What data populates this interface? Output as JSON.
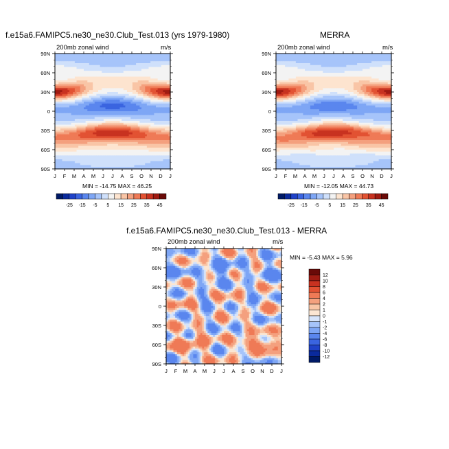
{
  "chart_data": [
    {
      "type": "heatmap",
      "title": "f.e15a6.FAMIPC5.ne30_ne30.Club_Test.013 (yrs 1979-1980)",
      "left_string": "200mb zonal wind",
      "right_string": "m/s",
      "x_ticks": [
        "J",
        "F",
        "M",
        "A",
        "M",
        "J",
        "J",
        "A",
        "S",
        "O",
        "N",
        "D",
        "J"
      ],
      "y_ticks": [
        "90N",
        "60N",
        "30N",
        "0",
        "30S",
        "60S",
        "90S"
      ],
      "ylim": [
        -90,
        90
      ],
      "stats": "MIN = -14.75 MAX =  46.25",
      "min": -14.75,
      "max": 46.25,
      "colorbar": {
        "orientation": "horizontal",
        "labels": [
          "-25",
          "-15",
          "-5",
          "5",
          "15",
          "25",
          "35",
          "45"
        ],
        "levels": [
          -30,
          -25,
          -20,
          -15,
          -10,
          -5,
          0,
          5,
          10,
          15,
          20,
          25,
          30,
          35,
          40,
          45
        ],
        "colors": [
          "#001a66",
          "#0a2a9c",
          "#1f42c8",
          "#3a64e0",
          "#5a86ee",
          "#7ea6f5",
          "#a6c4fa",
          "#cfe0fb",
          "#f3f3f3",
          "#fde4cf",
          "#f9c5a6",
          "#f4a07e",
          "#ef7a56",
          "#e25233",
          "#c83220",
          "#a01b12",
          "#6a0a08"
        ]
      },
      "description_fields": {
        "jet_north_lat": 30,
        "jet_north_peak_month": 1,
        "jet_north_peak": 46,
        "jet_south_lat": -32,
        "jet_south_peak_month": 7,
        "jet_south_peak": 42,
        "easterly_lat": 3,
        "easterly_peak_month": 7,
        "easterly_min": -14.75
      }
    },
    {
      "type": "heatmap",
      "title": "MERRA",
      "left_string": "200mb zonal wind",
      "right_string": "m/s",
      "x_ticks": [
        "J",
        "F",
        "M",
        "A",
        "M",
        "J",
        "J",
        "A",
        "S",
        "O",
        "N",
        "D",
        "J"
      ],
      "y_ticks": [
        "90N",
        "60N",
        "30N",
        "0",
        "30S",
        "60S",
        "90S"
      ],
      "ylim": [
        -90,
        90
      ],
      "stats": "MIN = -12.05 MAX =  44.73",
      "min": -12.05,
      "max": 44.73,
      "colorbar": {
        "orientation": "horizontal",
        "labels": [
          "-25",
          "-15",
          "-5",
          "5",
          "15",
          "25",
          "35",
          "45"
        ],
        "levels": [
          -30,
          -25,
          -20,
          -15,
          -10,
          -5,
          0,
          5,
          10,
          15,
          20,
          25,
          30,
          35,
          40,
          45
        ],
        "colors": [
          "#001a66",
          "#0a2a9c",
          "#1f42c8",
          "#3a64e0",
          "#5a86ee",
          "#7ea6f5",
          "#a6c4fa",
          "#cfe0fb",
          "#f3f3f3",
          "#fde4cf",
          "#f9c5a6",
          "#f4a07e",
          "#ef7a56",
          "#e25233",
          "#c83220",
          "#a01b12",
          "#6a0a08"
        ]
      }
    },
    {
      "type": "heatmap",
      "title": "f.e15a6.FAMIPC5.ne30_ne30.Club_Test.013 - MERRA",
      "left_string": "200mb zonal wind",
      "right_string": "m/s",
      "x_ticks": [
        "J",
        "F",
        "M",
        "A",
        "M",
        "J",
        "J",
        "A",
        "S",
        "O",
        "N",
        "D",
        "J"
      ],
      "y_ticks": [
        "90N",
        "60N",
        "30N",
        "0",
        "30S",
        "60S",
        "90S"
      ],
      "ylim": [
        -90,
        90
      ],
      "stats": "MIN =  -5.43 MAX =   5.96",
      "min": -5.43,
      "max": 5.96,
      "colorbar": {
        "orientation": "vertical",
        "labels": [
          "12",
          "10",
          "8",
          "6",
          "4",
          "2",
          "1",
          "0",
          "-1",
          "-2",
          "-4",
          "-6",
          "-8",
          "-10",
          "-12"
        ],
        "levels": [
          -12,
          -10,
          -8,
          -6,
          -4,
          -2,
          -1,
          0,
          1,
          2,
          4,
          6,
          8,
          10,
          12
        ],
        "colors": [
          "#001a66",
          "#0a2a9c",
          "#1f42c8",
          "#3a64e0",
          "#5a86ee",
          "#7ea6f5",
          "#a6c4fa",
          "#d6e4fb",
          "#fbe6d3",
          "#f9c5a6",
          "#f4a07e",
          "#ef7a56",
          "#e25233",
          "#c83220",
          "#a01b12",
          "#6a0a08"
        ]
      }
    }
  ]
}
